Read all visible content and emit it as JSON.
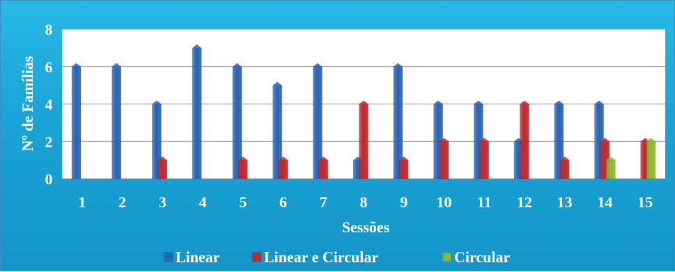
{
  "chart_data": {
    "type": "bar",
    "title": "",
    "xlabel": "Sessões",
    "ylabel": "Nº de Famílias",
    "ylim": [
      0,
      8
    ],
    "yticks": [
      0,
      2,
      4,
      6,
      8
    ],
    "grid": true,
    "legend_position": "bottom",
    "categories": [
      "1",
      "2",
      "3",
      "4",
      "5",
      "6",
      "7",
      "8",
      "9",
      "10",
      "11",
      "12",
      "13",
      "14",
      "15"
    ],
    "series": [
      {
        "name": "Linear",
        "color": "#2a62b4",
        "values": [
          6,
          6,
          4,
          7,
          6,
          5,
          6,
          1,
          6,
          4,
          4,
          2,
          4,
          4,
          0
        ]
      },
      {
        "name": "Linear e Circular",
        "color": "#c1262b",
        "values": [
          0,
          0,
          1,
          0,
          1,
          1,
          1,
          4,
          1,
          2,
          2,
          4,
          1,
          2,
          2
        ]
      },
      {
        "name": "Circular",
        "color": "#8fb62f",
        "values": [
          0,
          0,
          0,
          0,
          0,
          0,
          0,
          0,
          0,
          0,
          0,
          0,
          0,
          1,
          2
        ]
      }
    ]
  }
}
